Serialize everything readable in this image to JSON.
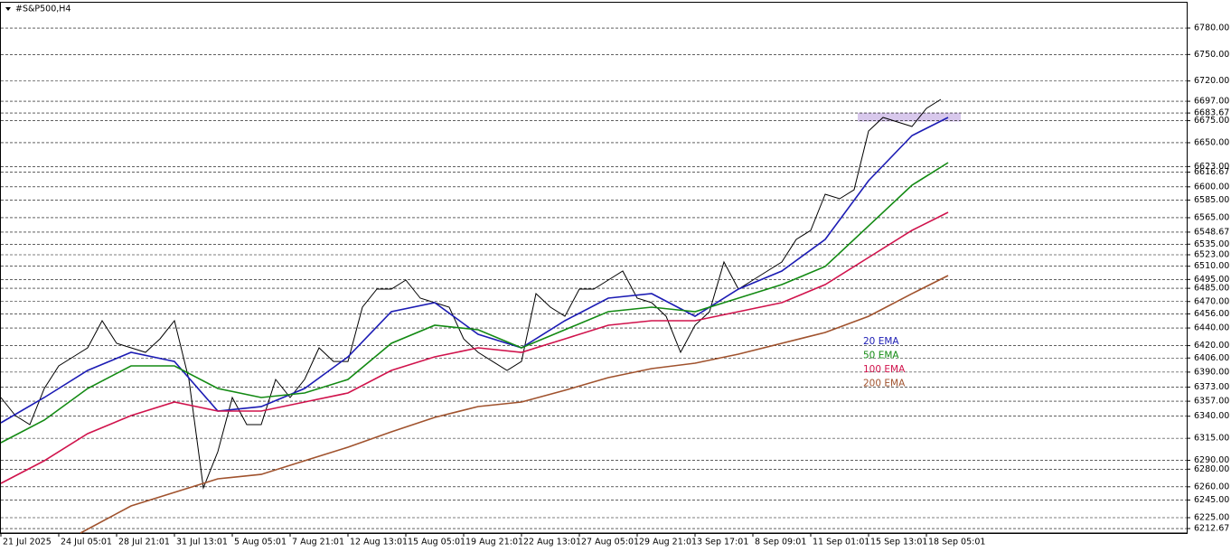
{
  "chart_data": {
    "type": "line",
    "title": "#S&P500,H4",
    "xlim": [
      0,
      328
    ],
    "ylim": [
      6207.6,
      6808.7
    ],
    "grid": true,
    "xticks": [
      {
        "value": 0,
        "label": "21 Jul 2025"
      },
      {
        "value": 16,
        "label": "24 Jul 05:01"
      },
      {
        "value": 32,
        "label": "28 Jul 21:01"
      },
      {
        "value": 48,
        "label": "31 Jul 13:01"
      },
      {
        "value": 64,
        "label": "5 Aug 05:01"
      },
      {
        "value": 80,
        "label": "7 Aug 21:01"
      },
      {
        "value": 96,
        "label": "12 Aug 13:01"
      },
      {
        "value": 112,
        "label": "15 Aug 05:01"
      },
      {
        "value": 128,
        "label": "19 Aug 21:01"
      },
      {
        "value": 144,
        "label": "22 Aug 13:01"
      },
      {
        "value": 160,
        "label": "27 Aug 05:01"
      },
      {
        "value": 176,
        "label": "29 Aug 21:01"
      },
      {
        "value": 192,
        "label": "3 Sep 17:01"
      },
      {
        "value": 208,
        "label": "8 Sep 09:01"
      },
      {
        "value": 224,
        "label": "11 Sep 01:01"
      },
      {
        "value": 240,
        "label": "15 Sep 13:01"
      },
      {
        "value": 256,
        "label": "18 Sep 05:01"
      }
    ],
    "yticks": [
      {
        "value": 6780,
        "label": "6780.00"
      },
      {
        "value": 6750,
        "label": "6750.00"
      },
      {
        "value": 6720,
        "label": "6720.00"
      },
      {
        "value": 6697,
        "label": "6697.00"
      },
      {
        "value": 6683.67,
        "label": "6683.67"
      },
      {
        "value": 6675,
        "label": "6675.00"
      },
      {
        "value": 6650,
        "label": "6650.00"
      },
      {
        "value": 6623,
        "label": "6623.00"
      },
      {
        "value": 6616.67,
        "label": "6616.67"
      },
      {
        "value": 6600,
        "label": "6600.00"
      },
      {
        "value": 6585,
        "label": "6585.00"
      },
      {
        "value": 6565,
        "label": "6565.00"
      },
      {
        "value": 6548.67,
        "label": "6548.67"
      },
      {
        "value": 6535,
        "label": "6535.00"
      },
      {
        "value": 6523,
        "label": "6523.00"
      },
      {
        "value": 6510,
        "label": "6510.00"
      },
      {
        "value": 6495,
        "label": "6495.00"
      },
      {
        "value": 6485,
        "label": "6485.00"
      },
      {
        "value": 6470,
        "label": "6470.00"
      },
      {
        "value": 6456,
        "label": "6456.00"
      },
      {
        "value": 6440,
        "label": "6440.00"
      },
      {
        "value": 6420,
        "label": "6420.00"
      },
      {
        "value": 6406,
        "label": "6406.00"
      },
      {
        "value": 6390,
        "label": "6390.00"
      },
      {
        "value": 6373,
        "label": "6373.00"
      },
      {
        "value": 6357,
        "label": "6357.00"
      },
      {
        "value": 6340,
        "label": "6340.00"
      },
      {
        "value": 6315,
        "label": "6315.00"
      },
      {
        "value": 6290,
        "label": "6290.00"
      },
      {
        "value": 6280,
        "label": "6280.00"
      },
      {
        "value": 6260,
        "label": "6260.00"
      },
      {
        "value": 6245,
        "label": "6245.00"
      },
      {
        "value": 6225,
        "label": "6225.00"
      },
      {
        "value": 6212.67,
        "label": "6212.67"
      }
    ],
    "zone": {
      "color": "#d8c8ec",
      "xlim": [
        237,
        265.5
      ],
      "ylim": [
        6674,
        6684
      ]
    },
    "series": [
      {
        "color": "#000000",
        "x": [
          0,
          4,
          8,
          12,
          16,
          20,
          24,
          28,
          32,
          36,
          40,
          44,
          48,
          52,
          56,
          60,
          64,
          68,
          72,
          76,
          80,
          84,
          88,
          92,
          96,
          100,
          104,
          108,
          112,
          116,
          120,
          124,
          128,
          132,
          136,
          140,
          144,
          148,
          152,
          156,
          160,
          164,
          168,
          172,
          176,
          180,
          184,
          188,
          192,
          196,
          200,
          204,
          208,
          212,
          216,
          220,
          224,
          228,
          232,
          236,
          240,
          244,
          248,
          252,
          256,
          260
        ],
        "values": [
          6361.2,
          6340.7,
          6330.5,
          6371.4,
          6397,
          6407.3,
          6417.5,
          6448.2,
          6422.6,
          6417.5,
          6412.4,
          6427.7,
          6448.2,
          6381.7,
          6258.8,
          6299.8,
          6361.2,
          6330.5,
          6330.5,
          6381.7,
          6361.2,
          6381.7,
          6417.5,
          6402.1,
          6402.1,
          6463.6,
          6484.1,
          6484.1,
          6494.3,
          6473.8,
          6468.7,
          6463.6,
          6427.7,
          6412.4,
          6402.1,
          6391.9,
          6402.1,
          6479,
          6463.6,
          6453.3,
          6484.1,
          6484.1,
          6494.3,
          6504.6,
          6473.8,
          6468.7,
          6453.3,
          6412.4,
          6443.1,
          6458.5,
          6514.8,
          6484.1,
          6494.3,
          6504.6,
          6514.8,
          6540.4,
          6550.6,
          6591.6,
          6586.5,
          6596.7,
          6663.3,
          6678.6,
          6673.5,
          6668.4,
          6688.9,
          6699.1
        ]
      },
      {
        "name": "20 EMA",
        "color": "#1c1cb4",
        "x": [
          0,
          12,
          24,
          36,
          48,
          60,
          72,
          84,
          96,
          108,
          120,
          132,
          144,
          156,
          168,
          180,
          192,
          204,
          216,
          228,
          240,
          252,
          262
        ],
        "values": [
          6332.5,
          6361.2,
          6391.9,
          6412.4,
          6402.1,
          6345.8,
          6350.9,
          6371.4,
          6407.3,
          6458.5,
          6468.7,
          6432.9,
          6417.5,
          6448.2,
          6473.8,
          6479,
          6453.3,
          6484.1,
          6504.6,
          6540.4,
          6607,
          6658.1,
          6678.6
        ]
      },
      {
        "name": "50 EMA",
        "color": "#138a13",
        "x": [
          0,
          12,
          24,
          36,
          48,
          60,
          72,
          84,
          96,
          108,
          120,
          132,
          144,
          156,
          168,
          180,
          192,
          204,
          216,
          228,
          240,
          252,
          262
        ],
        "values": [
          6310,
          6335.6,
          6371.4,
          6397,
          6397,
          6371.4,
          6361.2,
          6366.3,
          6381.7,
          6422.6,
          6443.1,
          6438,
          6417.5,
          6438,
          6458.5,
          6463.6,
          6458.5,
          6473.8,
          6489.2,
          6509.7,
          6555.7,
          6601.8,
          6627.4
        ]
      },
      {
        "name": "100 EMA",
        "color": "#d0134c",
        "x": [
          0,
          12,
          24,
          36,
          48,
          60,
          72,
          84,
          96,
          108,
          120,
          132,
          144,
          156,
          168,
          180,
          192,
          204,
          216,
          228,
          240,
          252,
          262
        ],
        "values": [
          6263.9,
          6289.5,
          6320.2,
          6340.7,
          6356.1,
          6345.8,
          6345.8,
          6356.1,
          6366.3,
          6391.9,
          6407.3,
          6417.5,
          6412.4,
          6427.7,
          6443.1,
          6448.2,
          6448.2,
          6458.5,
          6468.7,
          6489.2,
          6519.9,
          6550.6,
          6571.1
        ]
      },
      {
        "name": "200 EMA",
        "color": "#a0522d",
        "x": [
          22,
          36,
          48,
          60,
          72,
          84,
          96,
          108,
          120,
          132,
          144,
          156,
          168,
          180,
          192,
          204,
          216,
          228,
          240,
          252,
          262
        ],
        "values": [
          6207.6,
          6238.3,
          6253.7,
          6269,
          6274.1,
          6289.5,
          6304.9,
          6322.3,
          6338.7,
          6351,
          6356.1,
          6369.4,
          6383.7,
          6394,
          6400.1,
          6410.4,
          6422.6,
          6434.9,
          6453.3,
          6478.9,
          6499.4
        ]
      }
    ]
  }
}
